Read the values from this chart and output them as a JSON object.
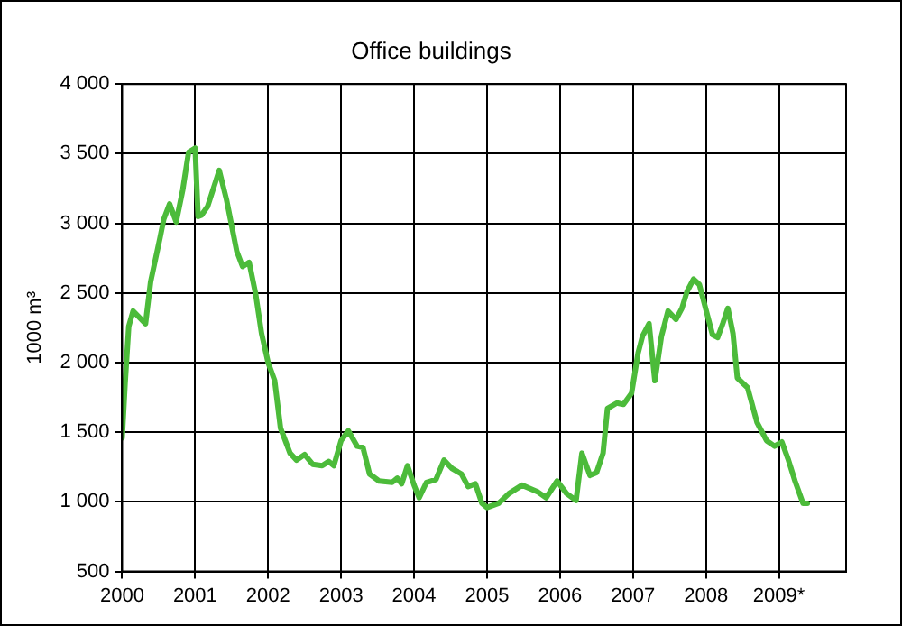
{
  "chart_data": {
    "type": "line",
    "title": "Office buildings",
    "ylabel": "1000 m³",
    "x": [
      2000.0,
      2000.04,
      2000.09,
      2000.15,
      2000.32,
      2000.39,
      2000.52,
      2000.57,
      2000.65,
      2000.74,
      2000.83,
      2000.91,
      2001.0,
      2001.04,
      2001.09,
      2001.17,
      2001.33,
      2001.43,
      2001.57,
      2001.65,
      2001.74,
      2001.83,
      2001.91,
      2002.0,
      2002.09,
      2002.17,
      2002.3,
      2002.39,
      2002.5,
      2002.61,
      2002.74,
      2002.83,
      2002.9,
      2003.0,
      2003.1,
      2003.22,
      2003.3,
      2003.39,
      2003.52,
      2003.7,
      2003.77,
      2003.83,
      2003.91,
      2004.0,
      2004.07,
      2004.17,
      2004.3,
      2004.41,
      2004.52,
      2004.65,
      2004.74,
      2004.84,
      2004.93,
      2005.0,
      2005.16,
      2005.3,
      2005.48,
      2005.57,
      2005.7,
      2005.81,
      2005.96,
      2006.09,
      2006.22,
      2006.3,
      2006.41,
      2006.5,
      2006.59,
      2006.65,
      2006.78,
      2006.87,
      2006.98,
      2007.07,
      2007.13,
      2007.22,
      2007.3,
      2007.39,
      2007.48,
      2007.59,
      2007.67,
      2007.74,
      2007.83,
      2007.91,
      2007.98,
      2008.09,
      2008.16,
      2008.23,
      2008.3,
      2008.37,
      2008.43,
      2008.57,
      2008.7,
      2008.83,
      2008.94,
      2009.04,
      2009.13,
      2009.22,
      2009.33,
      2009.39
    ],
    "series": [
      {
        "color": "#4cbb3a",
        "values": [
          1460,
          1850,
          2260,
          2370,
          2280,
          2580,
          2900,
          3030,
          3140,
          3010,
          3240,
          3510,
          3540,
          3050,
          3060,
          3120,
          3380,
          3170,
          2800,
          2690,
          2720,
          2490,
          2210,
          2000,
          1870,
          1530,
          1350,
          1300,
          1340,
          1270,
          1260,
          1290,
          1260,
          1440,
          1510,
          1400,
          1390,
          1200,
          1150,
          1140,
          1170,
          1130,
          1260,
          1120,
          1030,
          1140,
          1160,
          1300,
          1240,
          1200,
          1110,
          1130,
          990,
          960,
          990,
          1060,
          1120,
          1100,
          1070,
          1030,
          1150,
          1060,
          1010,
          1350,
          1190,
          1210,
          1350,
          1670,
          1710,
          1700,
          1780,
          2070,
          2190,
          2280,
          1870,
          2190,
          2370,
          2310,
          2390,
          2510,
          2600,
          2560,
          2420,
          2200,
          2180,
          2280,
          2390,
          2210,
          1890,
          1820,
          1570,
          1440,
          1400,
          1430,
          1300,
          1150,
          990,
          990
        ]
      }
    ],
    "xlim": [
      2000,
      2009.92
    ],
    "xticks": [
      2000,
      2001,
      2002,
      2003,
      2004,
      2005,
      2006,
      2007,
      2008,
      {
        "value": 2009,
        "label": "2009*"
      }
    ],
    "ylim": [
      500,
      4000
    ],
    "yticks": [
      {
        "value": 500,
        "label": "500"
      },
      {
        "value": 1000,
        "label": "1 000"
      },
      {
        "value": 1500,
        "label": "1 500"
      },
      {
        "value": 2000,
        "label": "2 000"
      },
      {
        "value": 2500,
        "label": "2 500"
      },
      {
        "value": 3000,
        "label": "3 000"
      },
      {
        "value": 3500,
        "label": "3 500"
      },
      {
        "value": 4000,
        "label": "4 000"
      }
    ],
    "grid": true,
    "legend": false,
    "marker": "none",
    "line_style": "solid"
  }
}
